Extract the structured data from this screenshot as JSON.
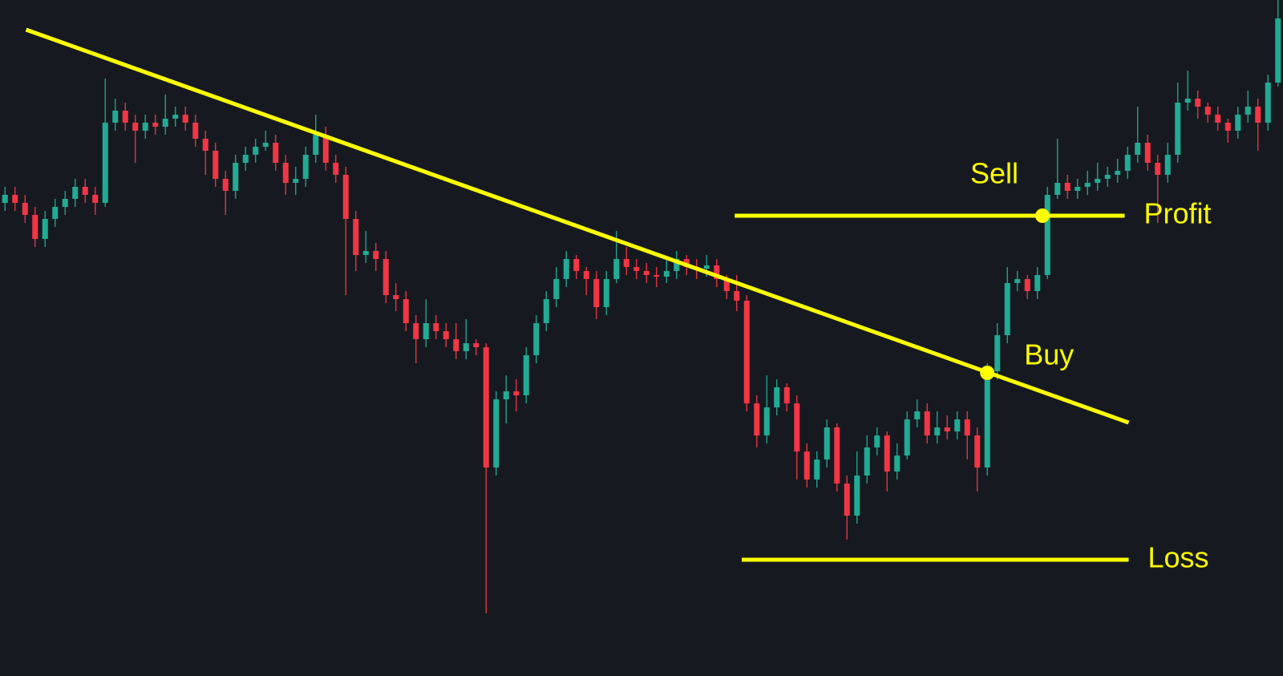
{
  "chart_data": {
    "type": "candlestick",
    "up_color": "#22ab94",
    "down_color": "#f23645",
    "annotation_color": "#ffff00",
    "background": "#161a20",
    "xlim": [
      -0.5,
      127.5
    ],
    "ylim": [
      0,
      843
    ],
    "series": [
      {
        "open": [
          590,
          600,
          590,
          575,
          545,
          570,
          585,
          595,
          610,
          600,
          590,
          690,
          705,
          690,
          680,
          690,
          685,
          695,
          700,
          690,
          670,
          655,
          620,
          605,
          640,
          650,
          660,
          665,
          640,
          615,
          620,
          650,
          675,
          640,
          625,
          570,
          525,
          530,
          520,
          475,
          470,
          440,
          420,
          440,
          430,
          420,
          405,
          415,
          410,
          260,
          345,
          355,
          350,
          400,
          440,
          470,
          495,
          520,
          505,
          495,
          460,
          495,
          520,
          510,
          505,
          500,
          498,
          505,
          520,
          510,
          508,
          512,
          495,
          480,
          468,
          340,
          300,
          335,
          360,
          340,
          280,
          245,
          270,
          310,
          240,
          200,
          250,
          285,
          300,
          255,
          275,
          320,
          330,
          300,
          310,
          305,
          320,
          300,
          260,
          380,
          425,
          490,
          495,
          480,
          500,
          600,
          615,
          605,
          610,
          615,
          620,
          625,
          630,
          650,
          665,
          640,
          625,
          650,
          715,
          720,
          710,
          700,
          690,
          680,
          700,
          710,
          690,
          740
        ],
        "high": [
          610,
          610,
          600,
          585,
          580,
          595,
          605,
          620,
          620,
          610,
          745,
          720,
          715,
          700,
          700,
          700,
          725,
          710,
          710,
          700,
          680,
          665,
          630,
          650,
          660,
          670,
          680,
          675,
          650,
          635,
          660,
          700,
          685,
          650,
          635,
          580,
          555,
          540,
          530,
          490,
          480,
          450,
          470,
          450,
          440,
          440,
          445,
          420,
          415,
          355,
          375,
          370,
          410,
          450,
          480,
          510,
          530,
          525,
          510,
          505,
          505,
          555,
          535,
          520,
          515,
          510,
          520,
          530,
          525,
          520,
          525,
          520,
          500,
          500,
          475,
          350,
          375,
          370,
          365,
          350,
          290,
          280,
          320,
          315,
          250,
          280,
          300,
          310,
          305,
          290,
          330,
          345,
          340,
          330,
          325,
          330,
          330,
          310,
          390,
          440,
          510,
          505,
          500,
          510,
          610,
          670,
          625,
          620,
          630,
          640,
          635,
          645,
          660,
          710,
          675,
          650,
          665,
          740,
          755,
          730,
          715,
          710,
          695,
          710,
          730,
          720,
          750,
          843
        ],
        "low": [
          580,
          580,
          565,
          535,
          535,
          560,
          575,
          585,
          590,
          575,
          585,
          680,
          680,
          640,
          670,
          675,
          675,
          685,
          680,
          660,
          625,
          610,
          575,
          595,
          630,
          640,
          655,
          630,
          600,
          600,
          610,
          640,
          630,
          615,
          475,
          505,
          515,
          505,
          465,
          455,
          430,
          390,
          410,
          420,
          410,
          395,
          395,
          400,
          78,
          250,
          315,
          330,
          340,
          390,
          430,
          460,
          485,
          495,
          475,
          445,
          450,
          490,
          500,
          495,
          490,
          485,
          490,
          495,
          500,
          495,
          498,
          485,
          470,
          455,
          330,
          285,
          290,
          325,
          330,
          245,
          235,
          235,
          260,
          230,
          170,
          190,
          240,
          275,
          230,
          245,
          270,
          310,
          290,
          290,
          295,
          295,
          270,
          230,
          250,
          370,
          415,
          480,
          470,
          470,
          495,
          595,
          595,
          595,
          600,
          605,
          610,
          615,
          620,
          640,
          630,
          565,
          615,
          640,
          705,
          695,
          690,
          680,
          665,
          670,
          690,
          655,
          680,
          735
        ],
        "close": [
          600,
          590,
          575,
          545,
          570,
          585,
          595,
          610,
          600,
          590,
          690,
          705,
          690,
          680,
          690,
          685,
          695,
          700,
          690,
          670,
          655,
          620,
          605,
          640,
          650,
          660,
          665,
          640,
          615,
          620,
          650,
          675,
          640,
          625,
          570,
          525,
          530,
          520,
          475,
          470,
          440,
          420,
          440,
          430,
          420,
          405,
          415,
          410,
          260,
          345,
          355,
          350,
          400,
          440,
          470,
          495,
          520,
          505,
          495,
          460,
          495,
          520,
          510,
          505,
          500,
          498,
          505,
          520,
          510,
          508,
          512,
          495,
          480,
          468,
          340,
          300,
          335,
          360,
          340,
          280,
          245,
          270,
          310,
          240,
          200,
          250,
          285,
          300,
          255,
          275,
          320,
          330,
          300,
          310,
          305,
          320,
          300,
          260,
          380,
          425,
          490,
          495,
          480,
          500,
          600,
          615,
          605,
          610,
          615,
          620,
          625,
          630,
          650,
          665,
          640,
          625,
          650,
          715,
          720,
          710,
          700,
          690,
          680,
          700,
          710,
          690,
          740,
          820
        ]
      }
    ],
    "annotations": {
      "trendline": {
        "x": [
          2.1,
          112.1
        ],
        "y": [
          806,
          316
        ]
      },
      "levels": [
        {
          "label": "Profit",
          "value": 574,
          "x": [
            72.8,
            111.7
          ]
        },
        {
          "label": "Loss",
          "value": 145,
          "x": [
            73.5,
            112.1
          ]
        }
      ],
      "points": [
        {
          "label": "Buy",
          "x": 98,
          "y": 378
        },
        {
          "label": "Sell",
          "x": 103.5,
          "y": 574
        }
      ]
    }
  }
}
